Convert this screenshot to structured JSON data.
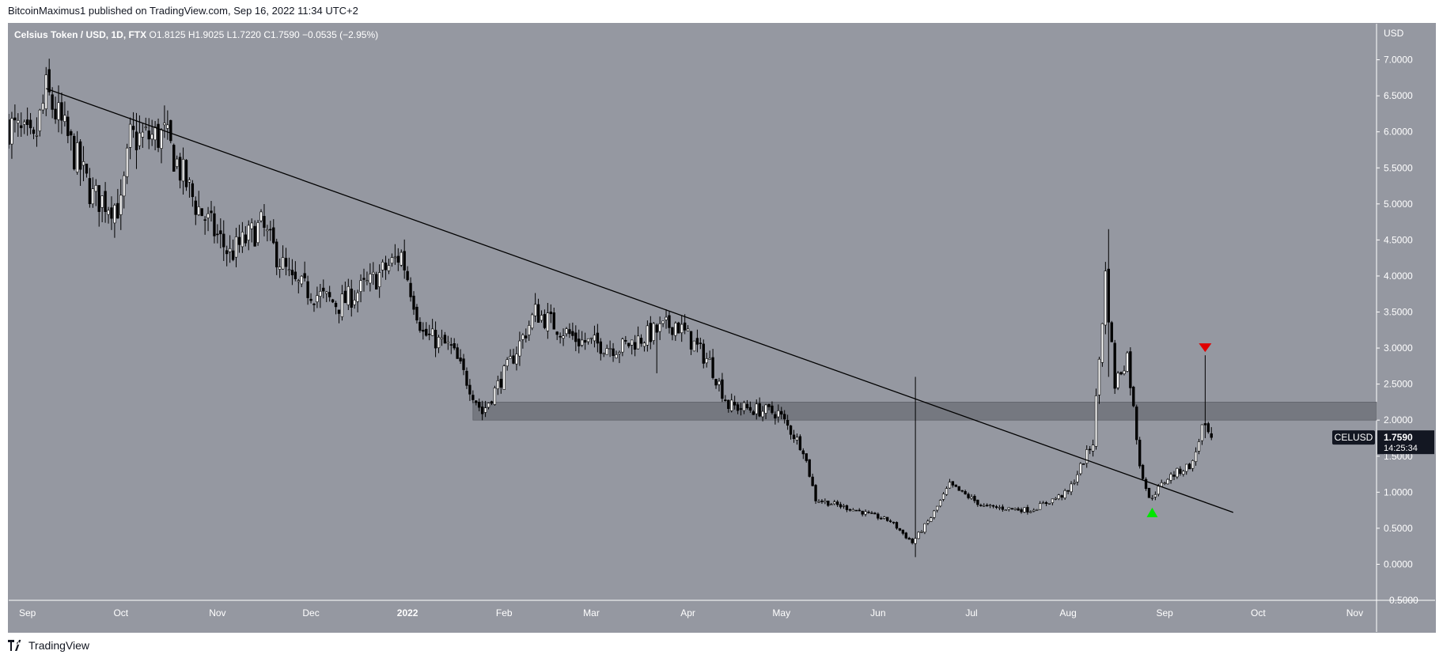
{
  "header": {
    "published_line": "BitcoinMaximus1 published on TradingView.com, Sep 16, 2022 11:34 UTC+2"
  },
  "footer": {
    "brand": "TradingView"
  },
  "colors": {
    "background": "#ffffff",
    "plot_bg": "#9598a1",
    "candle": "#000000",
    "trendline": "#000000",
    "zone": "#6b6e76",
    "up_arrow": "#00e600",
    "down_arrow": "#e00000",
    "price_tag_bg": "#131722"
  },
  "chart_data": {
    "type": "candlestick",
    "symbol_line": {
      "name": "Celsius Token / USD, 1D, FTX",
      "open_label": "O",
      "open": "1.8125",
      "high_label": "H",
      "high": "1.9025",
      "low_label": "L",
      "low": "1.7220",
      "close_label": "C",
      "close": "1.7590",
      "change": "−0.0535 (−2.95%)"
    },
    "y_axis": {
      "currency": "USD",
      "range": [
        -0.5,
        7.5
      ],
      "ticks": [
        "7.0000",
        "6.5000",
        "6.0000",
        "5.5000",
        "5.0000",
        "4.5000",
        "4.0000",
        "3.5000",
        "3.0000",
        "2.5000",
        "2.0000",
        "1.5000",
        "1.0000",
        "0.5000",
        "0.0000",
        "−0.5000"
      ]
    },
    "x_axis": {
      "ticks": [
        "Sep",
        "Oct",
        "Nov",
        "Dec",
        "2022",
        "Feb",
        "Mar",
        "Apr",
        "May",
        "Jun",
        "Jul",
        "Aug",
        "Sep",
        "Oct",
        "Nov"
      ],
      "range": [
        "2021-08-26",
        "2022-11-08"
      ]
    },
    "price_tag": {
      "symbol": "CELUSD",
      "price": "1.7590",
      "countdown": "14:25:34",
      "value": 1.759
    },
    "approx_close_path": [
      {
        "date": "2021-08-26",
        "close": 6.1
      },
      {
        "date": "2021-09-03",
        "close": 5.8
      },
      {
        "date": "2021-09-07",
        "close": 6.55
      },
      {
        "date": "2021-09-14",
        "close": 5.9
      },
      {
        "date": "2021-09-22",
        "close": 5.1
      },
      {
        "date": "2021-10-01",
        "close": 4.95
      },
      {
        "date": "2021-10-04",
        "close": 5.9
      },
      {
        "date": "2021-10-15",
        "close": 5.95
      },
      {
        "date": "2021-10-25",
        "close": 5.0
      },
      {
        "date": "2021-11-05",
        "close": 4.3
      },
      {
        "date": "2021-11-15",
        "close": 4.7
      },
      {
        "date": "2021-11-25",
        "close": 3.9
      },
      {
        "date": "2021-12-10",
        "close": 3.6
      },
      {
        "date": "2021-12-20",
        "close": 3.9
      },
      {
        "date": "2021-12-30",
        "close": 4.3
      },
      {
        "date": "2022-01-06",
        "close": 3.2
      },
      {
        "date": "2022-01-15",
        "close": 3.0
      },
      {
        "date": "2022-01-25",
        "close": 2.1
      },
      {
        "date": "2022-02-03",
        "close": 2.8
      },
      {
        "date": "2022-02-11",
        "close": 3.5
      },
      {
        "date": "2022-02-25",
        "close": 3.1
      },
      {
        "date": "2022-03-10",
        "close": 3.0
      },
      {
        "date": "2022-03-28",
        "close": 3.35
      },
      {
        "date": "2022-04-08",
        "close": 2.8
      },
      {
        "date": "2022-04-14",
        "close": 2.2
      },
      {
        "date": "2022-04-30",
        "close": 2.1
      },
      {
        "date": "2022-05-08",
        "close": 1.6
      },
      {
        "date": "2022-05-12",
        "close": 0.9
      },
      {
        "date": "2022-05-25",
        "close": 0.75
      },
      {
        "date": "2022-06-05",
        "close": 0.6
      },
      {
        "date": "2022-06-12",
        "close": 0.3
      },
      {
        "date": "2022-06-18",
        "close": 0.65
      },
      {
        "date": "2022-06-24",
        "close": 1.1
      },
      {
        "date": "2022-07-05",
        "close": 0.8
      },
      {
        "date": "2022-07-20",
        "close": 0.75
      },
      {
        "date": "2022-08-01",
        "close": 1.0
      },
      {
        "date": "2022-08-09",
        "close": 1.7
      },
      {
        "date": "2022-08-13",
        "close": 4.0
      },
      {
        "date": "2022-08-16",
        "close": 2.5
      },
      {
        "date": "2022-08-20",
        "close": 2.9
      },
      {
        "date": "2022-08-24",
        "close": 1.4
      },
      {
        "date": "2022-08-27",
        "close": 0.9
      },
      {
        "date": "2022-09-02",
        "close": 1.2
      },
      {
        "date": "2022-09-10",
        "close": 1.4
      },
      {
        "date": "2022-09-13",
        "close": 1.9
      },
      {
        "date": "2022-09-16",
        "close": 1.759
      }
    ],
    "spikes": [
      {
        "date": "2022-06-13",
        "high": 2.6,
        "low": 0.1
      },
      {
        "date": "2022-08-14",
        "high": 4.65,
        "low": 2.6
      },
      {
        "date": "2022-09-14",
        "high": 2.9,
        "low": 1.75
      },
      {
        "date": "2022-03-22",
        "high": 3.2,
        "low": 2.65
      }
    ],
    "annotations": {
      "trendline": {
        "start": {
          "date": "2021-09-07",
          "value": 6.6
        },
        "end": {
          "date": "2022-09-23",
          "value": 0.72
        }
      },
      "horizontal_zone": {
        "from_date": "2022-01-22",
        "to_date": "2022-11-08",
        "low": 2.0,
        "high": 2.25
      },
      "up_arrow": {
        "date": "2022-08-28",
        "value": 0.72
      },
      "down_arrow": {
        "date": "2022-09-14",
        "value": 3.0
      }
    }
  }
}
